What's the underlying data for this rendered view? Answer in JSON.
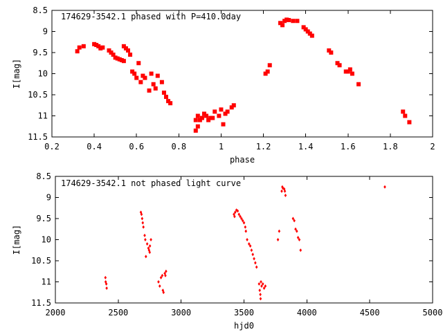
{
  "chart_data": [
    {
      "type": "scatter",
      "title": "174629-3542.1 phased with P=410.0day",
      "xlabel": "phase",
      "ylabel": "I[mag]",
      "xlim": [
        0.2,
        2.0
      ],
      "ylim": [
        8.5,
        11.5
      ],
      "y_inverted": true,
      "grid": false,
      "legend": "none",
      "marker_color": "#ff0000",
      "marker": "filled-square",
      "x_ticks": [
        "0.2",
        "0.4",
        "0.6",
        "0.8",
        "1",
        "1.2",
        "1.4",
        "1.6",
        "1.8",
        "2"
      ],
      "y_ticks": [
        "8.5",
        "9",
        "9.5",
        "10",
        "10.5",
        "11",
        "11.5"
      ],
      "series": [
        {
          "x": [
            0.32,
            0.33,
            0.35,
            0.4,
            0.41,
            0.42,
            0.43,
            0.44,
            0.47,
            0.48,
            0.49,
            0.5,
            0.51,
            0.52,
            0.53,
            0.54,
            0.54,
            0.55,
            0.56,
            0.57,
            0.58,
            0.59,
            0.6,
            0.61,
            0.62,
            0.63,
            0.64,
            0.66,
            0.67,
            0.68,
            0.69,
            0.7,
            0.72,
            0.73,
            0.74,
            0.75,
            0.76,
            0.88,
            0.88,
            0.89,
            0.89,
            0.9,
            0.91,
            0.92,
            0.93,
            0.94,
            0.95,
            0.96,
            0.97,
            0.99,
            1.0,
            1.01,
            1.02,
            1.03,
            1.05,
            1.06,
            1.21,
            1.22,
            1.23,
            1.28,
            1.29,
            1.3,
            1.31,
            1.32,
            1.34,
            1.36,
            1.39,
            1.4,
            1.41,
            1.42,
            1.43,
            1.51,
            1.52,
            1.55,
            1.56,
            1.59,
            1.6,
            1.61,
            1.62,
            1.65,
            1.86,
            1.87,
            1.89
          ],
          "y": [
            9.47,
            9.38,
            9.35,
            9.3,
            9.32,
            9.35,
            9.4,
            9.38,
            9.45,
            9.5,
            9.55,
            9.62,
            9.64,
            9.66,
            9.68,
            9.35,
            9.7,
            9.4,
            9.45,
            9.55,
            9.95,
            10.0,
            10.1,
            9.75,
            10.2,
            10.05,
            10.1,
            10.4,
            10.0,
            10.25,
            10.35,
            10.05,
            10.2,
            10.45,
            10.55,
            10.65,
            10.7,
            11.1,
            11.35,
            11.0,
            11.25,
            11.1,
            11.05,
            10.95,
            11.0,
            11.1,
            11.05,
            11.05,
            10.9,
            11.0,
            10.85,
            11.2,
            10.95,
            10.9,
            10.8,
            10.75,
            10.0,
            9.95,
            9.8,
            8.8,
            8.85,
            8.75,
            8.72,
            8.73,
            8.75,
            8.75,
            8.9,
            8.95,
            9.0,
            9.05,
            9.1,
            9.45,
            9.5,
            9.75,
            9.8,
            9.95,
            9.95,
            9.9,
            10.0,
            10.25,
            10.9,
            11.0,
            11.15
          ]
        }
      ]
    },
    {
      "type": "scatter",
      "title": "174629-3542.1 not phased light curve",
      "xlabel": "hjd0",
      "ylabel": "I[mag]",
      "xlim": [
        2000,
        5000
      ],
      "ylim": [
        8.5,
        11.5
      ],
      "y_inverted": true,
      "grid": false,
      "legend": "none",
      "marker_color": "#ff0000",
      "marker": "small-diamond",
      "x_ticks": [
        "2000",
        "2500",
        "3000",
        "3500",
        "4000",
        "4500",
        "5000"
      ],
      "y_ticks": [
        "8.5",
        "9",
        "9.5",
        "10",
        "10.5",
        "11",
        "11.5"
      ],
      "series": [
        {
          "x": [
            2398,
            2400,
            2405,
            2408,
            2680,
            2685,
            2690,
            2695,
            2700,
            2710,
            2715,
            2720,
            2730,
            2740,
            2745,
            2750,
            2752,
            2760,
            2820,
            2830,
            2840,
            2850,
            2855,
            2860,
            2870,
            2875,
            2880,
            3420,
            3425,
            3430,
            3440,
            3450,
            3460,
            3470,
            3480,
            3490,
            3500,
            3510,
            3515,
            3525,
            3540,
            3550,
            3560,
            3570,
            3580,
            3590,
            3600,
            3620,
            3625,
            3630,
            3632,
            3635,
            3640,
            3650,
            3660,
            3670,
            3770,
            3780,
            3800,
            3805,
            3810,
            3820,
            3825,
            3830,
            3890,
            3900,
            3910,
            3920,
            3930,
            3940,
            3950,
            4620
          ],
          "y": [
            10.9,
            11.0,
            11.05,
            11.15,
            9.35,
            9.4,
            9.5,
            9.6,
            9.7,
            9.9,
            10.0,
            10.4,
            10.1,
            10.2,
            10.25,
            10.3,
            10.15,
            10.0,
            11.0,
            11.1,
            10.9,
            10.85,
            11.2,
            11.25,
            10.8,
            10.85,
            10.75,
            9.4,
            9.45,
            9.35,
            9.3,
            9.32,
            9.4,
            9.45,
            9.5,
            9.55,
            9.6,
            9.7,
            9.8,
            10.0,
            10.1,
            10.15,
            10.25,
            10.35,
            10.45,
            10.55,
            10.65,
            11.05,
            11.2,
            11.3,
            11.4,
            11.0,
            11.1,
            11.05,
            11.15,
            11.1,
            10.0,
            9.8,
            8.85,
            8.75,
            8.78,
            8.8,
            8.85,
            8.95,
            9.5,
            9.55,
            9.75,
            9.8,
            9.95,
            10.0,
            10.25,
            8.75
          ]
        }
      ]
    }
  ]
}
